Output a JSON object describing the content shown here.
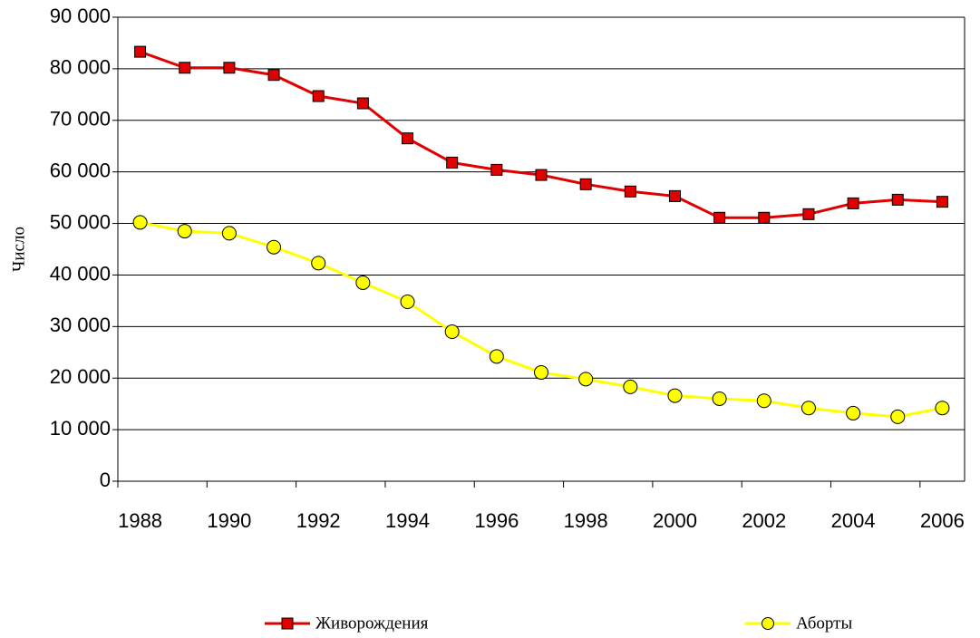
{
  "chart_data": {
    "type": "line",
    "y_label": "Число",
    "categories": [
      "1988",
      null,
      "1990",
      null,
      "1992",
      null,
      "1994",
      null,
      "1996",
      null,
      "1998",
      null,
      "2000",
      null,
      "2002",
      null,
      "2004",
      null,
      "2006"
    ],
    "series": [
      {
        "name": "Живорождения",
        "color": "#e00000",
        "marker": "square",
        "values": [
          83300,
          80200,
          80200,
          78800,
          74700,
          73300,
          66500,
          61800,
          60400,
          59400,
          57600,
          56200,
          55300,
          51100,
          51100,
          51800,
          53900,
          54600,
          54200
        ]
      },
      {
        "name": "Аборты",
        "color": "#ffff00",
        "marker": "circle",
        "values": [
          50200,
          48500,
          48100,
          45400,
          42300,
          38500,
          34800,
          29000,
          24200,
          21100,
          19800,
          18300,
          16600,
          16000,
          15600,
          14200,
          13200,
          12500,
          14200
        ]
      }
    ],
    "ylim": [
      0,
      90000
    ],
    "yticks": [
      0,
      {
        "value": 10000,
        "label": "10 000"
      },
      {
        "value": 20000,
        "label": "20 000"
      },
      {
        "value": 30000,
        "label": "30 000"
      },
      {
        "value": 40000,
        "label": "40 000"
      },
      {
        "value": 50000,
        "label": "50 000"
      },
      {
        "value": 60000,
        "label": "60 000"
      },
      {
        "value": 70000,
        "label": "70 000"
      },
      {
        "value": 80000,
        "label": "80 000"
      },
      {
        "value": 90000,
        "label": "90 000"
      }
    ],
    "grid": true
  }
}
